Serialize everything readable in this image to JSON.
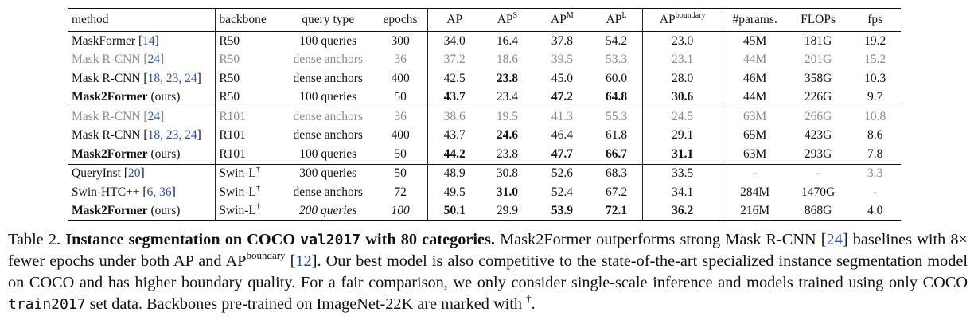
{
  "table": {
    "headers": {
      "method": "method",
      "backbone": "backbone",
      "query_type": "query type",
      "epochs": "epochs",
      "ap": "AP",
      "aps_base": "AP",
      "aps_sup": "S",
      "apm_base": "AP",
      "apm_sup": "M",
      "apl_base": "AP",
      "apl_sup": "L",
      "apb_base": "AP",
      "apb_sup": "boundary",
      "params": "#params.",
      "flops": "FLOPs",
      "fps": "fps"
    },
    "rows": [
      {
        "method": "MaskFormer",
        "suffix": "",
        "cite": "14",
        "backbone": "R50",
        "bb_sup": "",
        "query": "100 queries",
        "epochs": "300",
        "ap": "34.0",
        "aps": "16.4",
        "apm": "37.8",
        "apl": "54.2",
        "apb": "23.0",
        "params": "45M",
        "flops": "181G",
        "fps": "19.2"
      },
      {
        "method": "Mask R-CNN",
        "suffix": "",
        "cite": "24",
        "backbone": "R50",
        "bb_sup": "",
        "query": "dense anchors",
        "epochs": "36",
        "ap": "37.2",
        "aps": "18.6",
        "apm": "39.5",
        "apl": "53.3",
        "apb": "23.1",
        "params": "44M",
        "flops": "201G",
        "fps": "15.2"
      },
      {
        "method": "Mask R-CNN",
        "suffix": "",
        "cite": "18, 23, 24",
        "backbone": "R50",
        "bb_sup": "",
        "query": "dense anchors",
        "epochs": "400",
        "ap": "42.5",
        "aps": "23.8",
        "apm": "45.0",
        "apl": "60.0",
        "apb": "28.0",
        "params": "46M",
        "flops": "358G",
        "fps": "10.3"
      },
      {
        "method": "Mask2Former",
        "suffix": "(ours)",
        "cite": "",
        "backbone": "R50",
        "bb_sup": "",
        "query": "100 queries",
        "epochs": "50",
        "ap": "43.7",
        "aps": "23.4",
        "apm": "47.2",
        "apl": "64.8",
        "apb": "30.6",
        "params": "44M",
        "flops": "226G",
        "fps": "9.7"
      },
      {
        "method": "Mask R-CNN",
        "suffix": "",
        "cite": "24",
        "backbone": "R101",
        "bb_sup": "",
        "query": "dense anchors",
        "epochs": "36",
        "ap": "38.6",
        "aps": "19.5",
        "apm": "41.3",
        "apl": "55.3",
        "apb": "24.5",
        "params": "63M",
        "flops": "266G",
        "fps": "10.8"
      },
      {
        "method": "Mask R-CNN",
        "suffix": "",
        "cite": "18, 23, 24",
        "backbone": "R101",
        "bb_sup": "",
        "query": "dense anchors",
        "epochs": "400",
        "ap": "43.7",
        "aps": "24.6",
        "apm": "46.4",
        "apl": "61.8",
        "apb": "29.1",
        "params": "65M",
        "flops": "423G",
        "fps": "8.6"
      },
      {
        "method": "Mask2Former",
        "suffix": "(ours)",
        "cite": "",
        "backbone": "R101",
        "bb_sup": "",
        "query": "100 queries",
        "epochs": "50",
        "ap": "44.2",
        "aps": "23.8",
        "apm": "47.7",
        "apl": "66.7",
        "apb": "31.1",
        "params": "63M",
        "flops": "293G",
        "fps": "7.8"
      },
      {
        "method": "QueryInst",
        "suffix": "",
        "cite": "20",
        "backbone": "Swin-L",
        "bb_sup": "†",
        "query": "300 queries",
        "epochs": "50",
        "ap": "48.9",
        "aps": "30.8",
        "apm": "52.6",
        "apl": "68.3",
        "apb": "33.5",
        "params": "-",
        "flops": "-",
        "fps": "3.3"
      },
      {
        "method": "Swin-HTC++",
        "suffix": "",
        "cite": "6, 36",
        "backbone": "Swin-L",
        "bb_sup": "†",
        "query": "dense anchors",
        "epochs": "72",
        "ap": "49.5",
        "aps": "31.0",
        "apm": "52.4",
        "apl": "67.2",
        "apb": "34.1",
        "params": "284M",
        "flops": "1470G",
        "fps": "-"
      },
      {
        "method": "Mask2Former",
        "suffix": "(ours)",
        "cite": "",
        "backbone": "Swin-L",
        "bb_sup": "†",
        "query": "200 queries",
        "epochs": "100",
        "ap": "50.1",
        "aps": "29.9",
        "apm": "53.9",
        "apl": "72.1",
        "apb": "36.2",
        "params": "216M",
        "flops": "868G",
        "fps": "4.0"
      }
    ]
  },
  "caption": {
    "label": "Table 2.",
    "bold_a": "Instance segmentation on COCO",
    "bold_mono": "val2017",
    "bold_b": "with 80 categories.",
    "t1": "Mask2Former outperforms strong Mask R-CNN [",
    "c1": "24",
    "t2": "] baselines with 8× fewer epochs under both AP and AP",
    "t2_sup": "boundary",
    "t3": " [",
    "c2": "12",
    "t4": "]. Our best model is also competitive to the state-of-the-art specialized instance segmentation model on COCO and has higher boundary quality. For a fair comparison, we only consider single-scale inference and models trained using only COCO",
    "mono2": "train2017",
    "t5": "set data. Backbones pre-trained on ImageNet-22K are marked with",
    "dagger": "†",
    "t6": "."
  }
}
